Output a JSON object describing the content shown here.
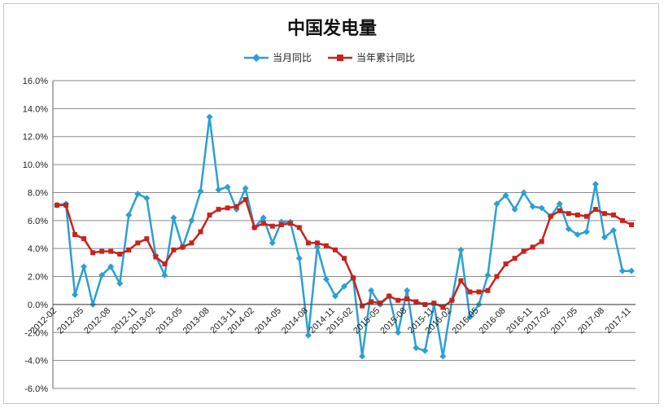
{
  "chart_data": {
    "type": "line",
    "title": "中国发电量",
    "xlabel": "",
    "ylabel": "",
    "ylim": [
      -6.0,
      16.0
    ],
    "yticks": [
      "-6.0%",
      "-4.0%",
      "-2.0%",
      "0.0%",
      "2.0%",
      "4.0%",
      "6.0%",
      "8.0%",
      "10.0%",
      "12.0%",
      "14.0%",
      "16.0%"
    ],
    "grid": true,
    "legend_position": "top",
    "x": [
      "2012-02",
      "2012-03",
      "2012-04",
      "2012-05",
      "2012-06",
      "2012-07",
      "2012-08",
      "2012-09",
      "2012-10",
      "2012-11",
      "2012-12",
      "2013-02",
      "2013-03",
      "2013-04",
      "2013-05",
      "2013-06",
      "2013-07",
      "2013-08",
      "2013-09",
      "2013-10",
      "2013-11",
      "2013-12",
      "2014-02",
      "2014-03",
      "2014-04",
      "2014-05",
      "2014-06",
      "2014-07",
      "2014-08",
      "2014-09",
      "2014-10",
      "2014-11",
      "2014-12",
      "2015-02",
      "2015-03",
      "2015-04",
      "2015-05",
      "2015-06",
      "2015-07",
      "2015-08",
      "2015-09",
      "2015-10",
      "2015-11",
      "2015-12",
      "2016-02",
      "2016-03",
      "2016-04",
      "2016-05",
      "2016-06",
      "2016-07",
      "2016-08",
      "2016-09",
      "2016-10",
      "2016-11",
      "2016-12",
      "2017-02",
      "2017-03",
      "2017-04",
      "2017-05",
      "2017-06",
      "2017-07",
      "2017-08",
      "2017-09",
      "2017-10",
      "2017-11"
    ],
    "xticks": [
      "2012-02",
      "2012-05",
      "2012-08",
      "2012-11",
      "2013-02",
      "2013-05",
      "2013-08",
      "2013-11",
      "2014-02",
      "2014-05",
      "2014-08",
      "2014-11",
      "2015-02",
      "2015-05",
      "2015-08",
      "2015-11",
      "2016-02",
      "2016-05",
      "2016-08",
      "2016-11",
      "2017-02",
      "2017-05",
      "2017-08",
      "2017-11"
    ],
    "series": [
      {
        "name": "当月同比",
        "color": "#2aa0d4",
        "marker": "diamond",
        "values": [
          7.1,
          7.2,
          0.7,
          2.7,
          0.0,
          2.1,
          2.7,
          1.5,
          6.4,
          7.9,
          7.6,
          3.5,
          2.1,
          6.2,
          4.1,
          6.0,
          8.1,
          13.4,
          8.2,
          8.4,
          6.8,
          8.3,
          5.5,
          6.2,
          4.4,
          5.9,
          5.9,
          3.3,
          -2.2,
          4.1,
          1.8,
          0.6,
          1.3,
          1.9,
          -3.7,
          1.0,
          0.0,
          0.6,
          -2.0,
          1.0,
          -3.1,
          -3.3,
          0.0,
          -3.7,
          0.3,
          3.9,
          -0.9,
          0.0,
          2.1,
          7.2,
          7.8,
          6.8,
          8.0,
          7.0,
          6.9,
          6.3,
          7.2,
          5.4,
          5.0,
          5.2,
          8.6,
          4.8,
          5.3,
          2.4,
          2.4
        ]
      },
      {
        "name": "当年累计同比",
        "color": "#c8231c",
        "marker": "square",
        "values": [
          7.1,
          7.1,
          5.0,
          4.7,
          3.7,
          3.8,
          3.8,
          3.6,
          3.9,
          4.4,
          4.7,
          3.4,
          2.9,
          3.9,
          4.1,
          4.4,
          5.2,
          6.4,
          6.8,
          6.9,
          7.0,
          7.5,
          5.5,
          5.8,
          5.6,
          5.7,
          5.8,
          5.5,
          4.4,
          4.4,
          4.2,
          3.9,
          3.3,
          1.9,
          -0.1,
          0.2,
          0.1,
          0.6,
          0.3,
          0.4,
          0.2,
          0.0,
          0.1,
          -0.2,
          0.3,
          1.7,
          0.9,
          0.9,
          1.0,
          2.0,
          2.9,
          3.3,
          3.8,
          4.1,
          4.5,
          6.3,
          6.7,
          6.5,
          6.4,
          6.3,
          6.8,
          6.5,
          6.4,
          6.0,
          5.7
        ]
      }
    ]
  }
}
